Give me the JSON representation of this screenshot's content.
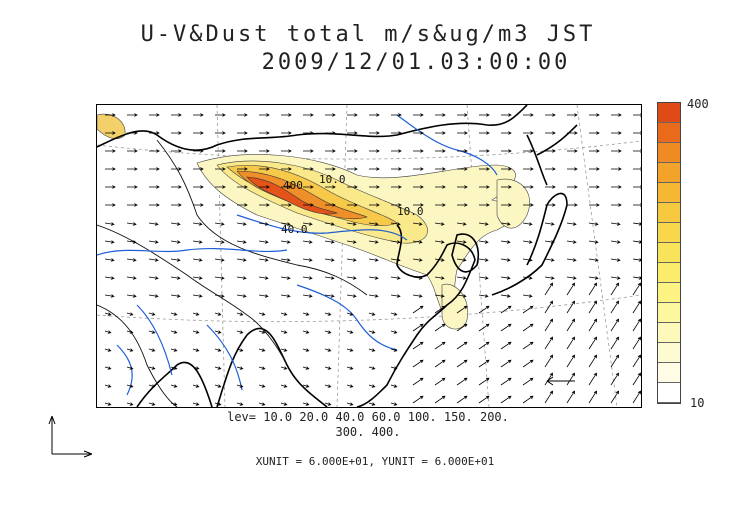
{
  "title": {
    "line1": "U-V&Dust total m/s&ug/m3 JST",
    "line2": "2009/12/01.03:00:00"
  },
  "map": {
    "contour_labels": [
      "10.0",
      "10.0",
      "400",
      "40.0"
    ],
    "colors": {
      "coast": "#000000",
      "rivers": "#1f5fd6",
      "wind_arrows": "#000000",
      "grid_lines": "#999999",
      "dust_low": "#fbf6c2",
      "dust_mid": "#f7dc5a",
      "dust_high": "#f29a24",
      "dust_max": "#e4531a"
    }
  },
  "legend": {
    "levels_line1": "lev= 10.0 20.0 40.0 60.0 100. 150. 200.",
    "levels_line2": "300. 400.",
    "units_line": "XUNIT = 6.000E+01, YUNIT = 6.000E+01"
  },
  "colorbar": {
    "max_label": "400",
    "min_label": "10",
    "colors": [
      "#e04a17",
      "#ea6a1c",
      "#f08a22",
      "#f3a22a",
      "#f6b833",
      "#f7c93e",
      "#f8d84a",
      "#f9e35a",
      "#fbec6c",
      "#fcf383",
      "#fdf7a0",
      "#fdf9ba",
      "#fdfbd2",
      "#fefce4",
      "#ffffff"
    ]
  }
}
